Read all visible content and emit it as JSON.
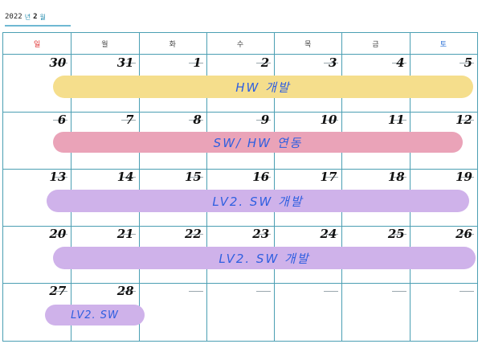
{
  "header": {
    "year": "2022",
    "year_unit": "년",
    "month": "2",
    "month_unit": "월"
  },
  "weekdays": [
    "일",
    "월",
    "화",
    "수",
    "목",
    "금",
    "토"
  ],
  "weeks": [
    [
      "30",
      "31",
      "1",
      "2",
      "3",
      "4",
      "5"
    ],
    [
      "6",
      "7",
      "8",
      "9",
      "10",
      "11",
      "12"
    ],
    [
      "13",
      "14",
      "15",
      "16",
      "17",
      "18",
      "19"
    ],
    [
      "20",
      "21",
      "22",
      "23",
      "24",
      "25",
      "26"
    ],
    [
      "27",
      "28",
      "",
      "",
      "",
      "",
      ""
    ]
  ],
  "events": [
    {
      "label": "HW 개발",
      "color": "#f5de8c"
    },
    {
      "label": "SW/ HW 연동",
      "color": "#eaa3b8"
    },
    {
      "label": "LV2. SW 개발",
      "color": "#cfb2ea"
    },
    {
      "label": "LV2. SW 개발",
      "color": "#cfb2ea"
    },
    {
      "label": "LV2. SW",
      "color": "#cfb2ea"
    }
  ]
}
